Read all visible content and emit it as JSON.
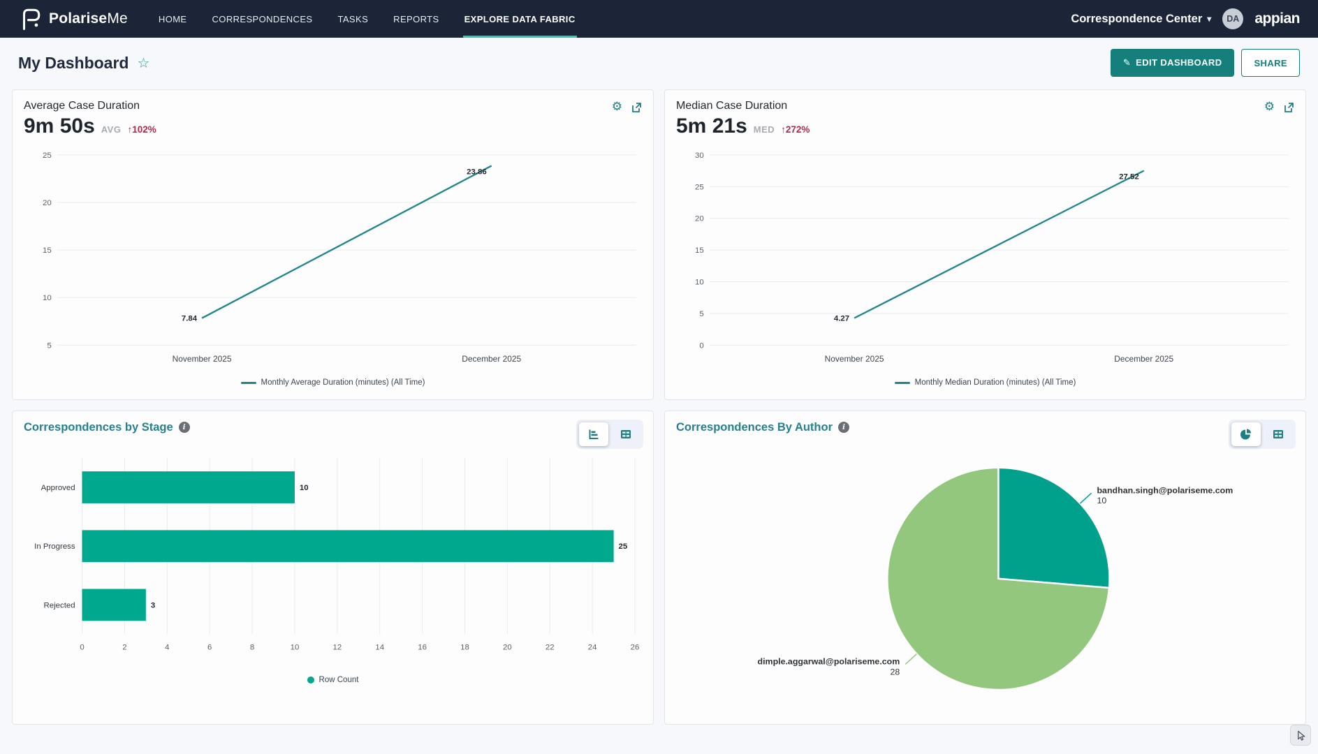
{
  "header": {
    "brand_bold": "Polarise",
    "brand_light": "Me",
    "nav": [
      {
        "label": "HOME",
        "active": false
      },
      {
        "label": "CORRESPONDENCES",
        "active": false
      },
      {
        "label": "TASKS",
        "active": false
      },
      {
        "label": "REPORTS",
        "active": false
      },
      {
        "label": "EXPLORE DATA FABRIC",
        "active": true
      }
    ],
    "workspace_label": "Correspondence Center",
    "avatar_initials": "DA",
    "vendor_logo_text": "appian"
  },
  "toolbar": {
    "page_title": "My Dashboard",
    "edit_button": "EDIT DASHBOARD",
    "share_button": "SHARE"
  },
  "colors": {
    "header_bg": "#1B2537",
    "accent_teal": "#15807B",
    "nav_underline_teal": "#2FC5B6",
    "chart_line_teal": "#1E868B",
    "bar_teal": "#00A88E",
    "pie_teal": "#00A18C",
    "pie_green": "#94C77E",
    "delta_red": "#B72746",
    "title_teal": "#27808E"
  },
  "chart_data": [
    {
      "type": "line",
      "title": "Average Case Duration",
      "kpi_value": "9m 50s",
      "kpi_unit": "AVG",
      "kpi_delta": "↑102%",
      "x": [
        "November 2025",
        "December 2025"
      ],
      "series": [
        {
          "name": "Monthly Average Duration (minutes) (All Time)",
          "values": [
            7.84,
            23.86
          ]
        }
      ],
      "ylim": [
        5,
        25
      ],
      "yticks": [
        25,
        20,
        15,
        10,
        5
      ],
      "grid": true,
      "legend_position": "bottom"
    },
    {
      "type": "line",
      "title": "Median Case Duration",
      "kpi_value": "5m 21s",
      "kpi_unit": "MED",
      "kpi_delta": "↑272%",
      "x": [
        "November 2025",
        "December 2025"
      ],
      "series": [
        {
          "name": "Monthly Median Duration (minutes) (All Time)",
          "values": [
            4.27,
            27.52
          ]
        }
      ],
      "ylim": [
        0,
        30
      ],
      "yticks": [
        30,
        25,
        20,
        15,
        10,
        5,
        0
      ],
      "grid": true,
      "legend_position": "bottom"
    },
    {
      "type": "bar",
      "orientation": "horizontal",
      "title": "Correspondences by Stage",
      "categories": [
        "Approved",
        "In Progress",
        "Rejected"
      ],
      "values": [
        10,
        25,
        3
      ],
      "xlim": [
        0,
        26
      ],
      "xticks": [
        0,
        2,
        4,
        6,
        8,
        10,
        12,
        14,
        16,
        18,
        20,
        22,
        24,
        26
      ],
      "legend": "Row Count",
      "grid": true,
      "legend_position": "bottom"
    },
    {
      "type": "pie",
      "title": "Correspondences By Author",
      "slices": [
        {
          "label": "bandhan.singh@polariseme.com",
          "value": 10
        },
        {
          "label": "dimple.aggarwal@polariseme.com",
          "value": 28
        }
      ]
    }
  ]
}
